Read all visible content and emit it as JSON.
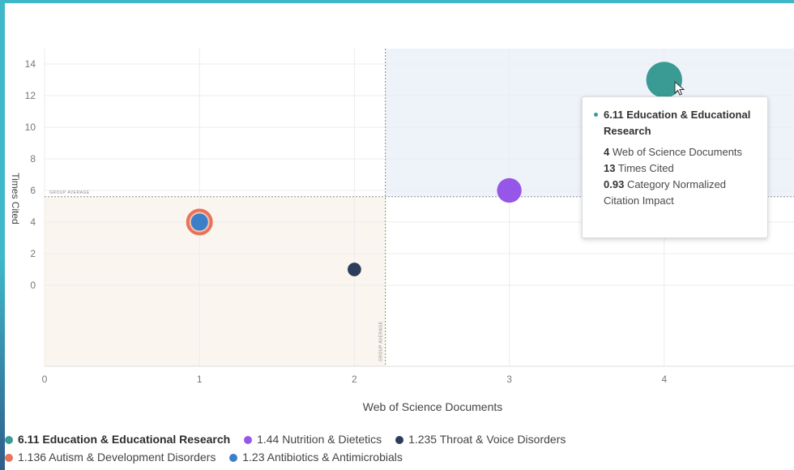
{
  "chart_data": {
    "type": "scatter",
    "xlabel": "Web of Science Documents",
    "ylabel": "Times Cited",
    "xlim": [
      0,
      4.85
    ],
    "ylim": [
      -5,
      15
    ],
    "x_ticks": [
      0,
      1,
      2,
      3,
      4
    ],
    "y_ticks": [
      0,
      2,
      4,
      6,
      8,
      10,
      12,
      14
    ],
    "grid": true,
    "group_average": {
      "x": 2.2,
      "y": 5.6,
      "label": "GROUP AVERAGE"
    },
    "series": [
      {
        "name": "6.11 Education & Educational Research",
        "x": 4,
        "y": 13,
        "color": "#3a9a94",
        "size": 0.93,
        "active": true
      },
      {
        "name": "1.44 Nutrition & Dietetics",
        "x": 3,
        "y": 6,
        "color": "#9656e8",
        "size": 0.55
      },
      {
        "name": "1.235 Throat & Voice Disorders",
        "x": 2,
        "y": 1,
        "color": "#2b3d5a",
        "size": 0.18
      },
      {
        "name": "1.136 Autism & Development Disorders",
        "x": 1,
        "y": 4,
        "color": "#e8735a",
        "size": 0.62
      },
      {
        "name": "1.23 Antibiotics & Antimicrobials",
        "x": 1,
        "y": 4,
        "color": "#3b7fc9",
        "size": 0.3
      }
    ],
    "legend_position": "bottom"
  },
  "tooltip": {
    "title": "6.11 Education & Educational Research",
    "docs_value": "4",
    "docs_label": "Web of Science Documents",
    "cited_value": "13",
    "cited_label": "Times Cited",
    "cnci_value": "0.93",
    "cnci_label": "Category Normalized Citation Impact"
  }
}
